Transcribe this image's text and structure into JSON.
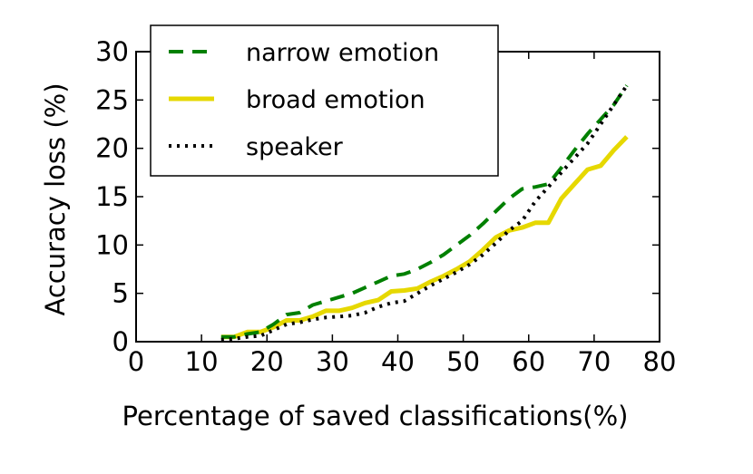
{
  "chart_data": {
    "type": "line",
    "title": "",
    "xlabel": "Percentage of saved classifications(%)",
    "ylabel": "Accuracy loss (%)",
    "xlim": [
      0,
      80
    ],
    "ylim": [
      0,
      30
    ],
    "xticks": [
      "0",
      "10",
      "20",
      "30",
      "40",
      "50",
      "60",
      "70",
      "80"
    ],
    "yticks": [
      "0",
      "5",
      "10",
      "15",
      "20",
      "25",
      "30"
    ],
    "grid": false,
    "legend_position": "top-left",
    "series": [
      {
        "name": "narrow emotion",
        "color": "#008000",
        "style": "dashed",
        "x": [
          13,
          15,
          17,
          19,
          21,
          23,
          25,
          27,
          29,
          31,
          33,
          35,
          37,
          39,
          41,
          43,
          45,
          47,
          49,
          51,
          53,
          55,
          57,
          59,
          61,
          63,
          65,
          67,
          69,
          71,
          73,
          75
        ],
        "y": [
          0.5,
          0.5,
          0.8,
          1.0,
          1.8,
          2.8,
          3.0,
          3.8,
          4.2,
          4.6,
          5.0,
          5.6,
          6.2,
          6.8,
          7.0,
          7.5,
          8.2,
          9.0,
          10.0,
          11.0,
          12.2,
          13.5,
          14.8,
          15.8,
          16.0,
          16.3,
          18.0,
          19.8,
          21.5,
          23.0,
          24.5,
          26.5
        ]
      },
      {
        "name": "broad emotion",
        "color": "#e6d800",
        "style": "solid",
        "x": [
          13,
          15,
          17,
          19,
          21,
          23,
          25,
          27,
          29,
          31,
          33,
          35,
          37,
          39,
          41,
          43,
          45,
          47,
          49,
          51,
          53,
          55,
          57,
          59,
          61,
          63,
          65,
          67,
          69,
          71,
          73,
          75
        ],
        "y": [
          0.5,
          0.5,
          1.0,
          1.0,
          1.5,
          2.2,
          2.2,
          2.6,
          3.2,
          3.2,
          3.5,
          4.0,
          4.3,
          5.2,
          5.3,
          5.5,
          6.2,
          6.8,
          7.5,
          8.3,
          9.5,
          10.8,
          11.5,
          11.8,
          12.3,
          12.3,
          14.8,
          16.3,
          17.8,
          18.2,
          19.8,
          21.2
        ]
      },
      {
        "name": "speaker",
        "color": "#000000",
        "style": "dotted",
        "x": [
          13,
          15,
          17,
          19,
          21,
          23,
          25,
          27,
          29,
          31,
          33,
          35,
          37,
          39,
          41,
          43,
          45,
          47,
          49,
          51,
          53,
          55,
          57,
          59,
          61,
          63,
          65,
          67,
          69,
          71,
          73,
          75
        ],
        "y": [
          0.2,
          0.3,
          0.5,
          0.6,
          1.2,
          1.8,
          2.0,
          2.3,
          2.5,
          2.6,
          2.7,
          3.0,
          3.6,
          4.0,
          4.2,
          5.0,
          5.8,
          6.5,
          7.2,
          8.0,
          9.0,
          10.2,
          11.5,
          12.5,
          14.5,
          16.0,
          17.5,
          19.0,
          20.5,
          22.5,
          24.5,
          26.5
        ]
      }
    ]
  }
}
